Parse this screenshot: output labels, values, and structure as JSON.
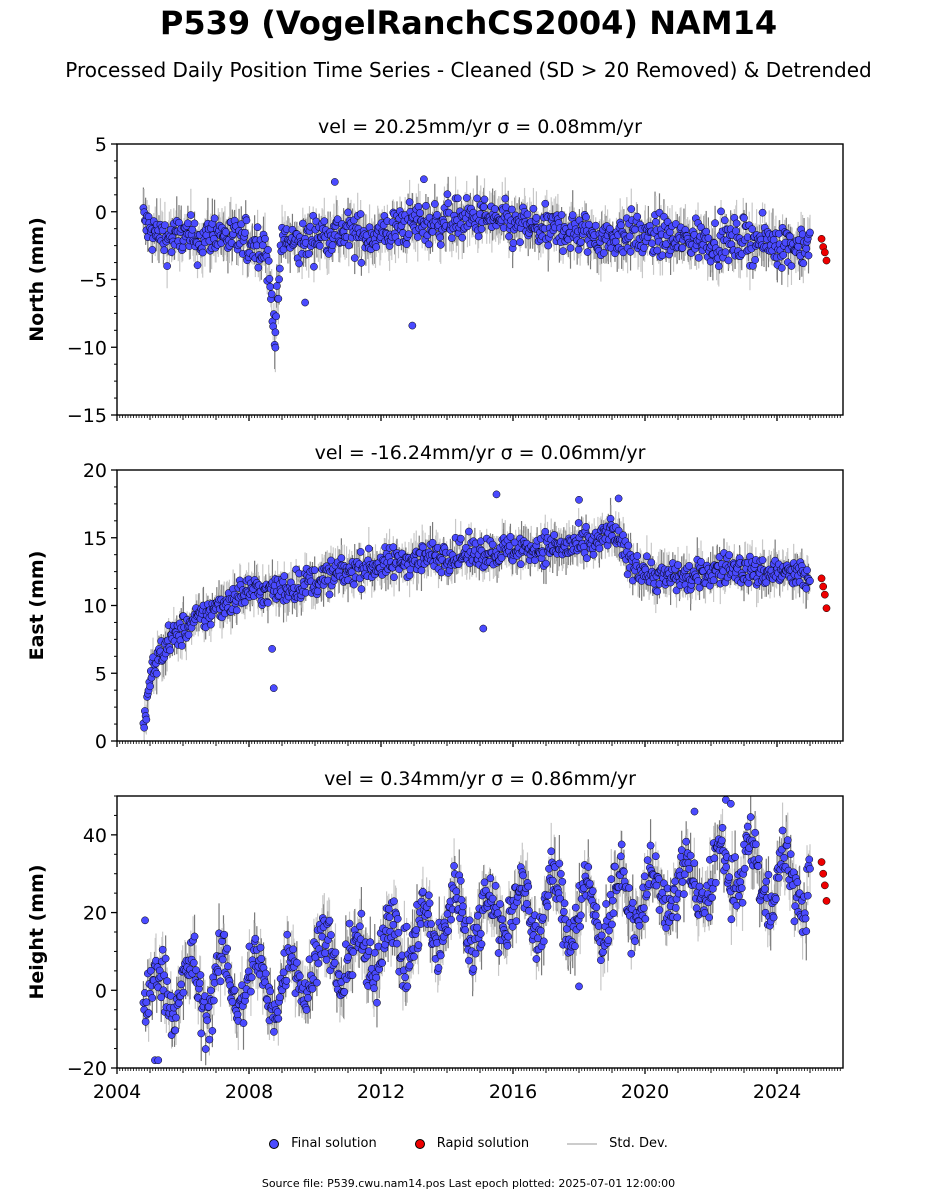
{
  "figure": {
    "title": "P539 (VogelRanchCS2004) NAM14",
    "subtitle": "Processed Daily Position Time Series - Cleaned (SD > 20 Removed) & Detrended",
    "source_note": "Source file: P539.cwu.nam14.pos  Last epoch plotted: 2025-07-01 12:00:00"
  },
  "legend": {
    "final": "Final solution",
    "rapid": "Rapid solution",
    "std": "Std. Dev."
  },
  "colors": {
    "final": "#4a4aff",
    "rapid": "#ee0000",
    "std": "#c8c8c8",
    "outline": "#000000"
  },
  "chart_data": [
    {
      "type": "scatter",
      "title": "vel = 20.25mm/yr   σ = 0.08mm/yr",
      "ylabel": "North (mm)",
      "ylim": [
        -15,
        5
      ],
      "yticks": [
        -15,
        -10,
        -5,
        0,
        5
      ],
      "xlim": [
        2004,
        2026
      ],
      "xticks": [
        2004,
        2008,
        2012,
        2016,
        2020,
        2024
      ],
      "series": [
        {
          "name": "Final solution",
          "x": [
            2004.8,
            2005.0,
            2005.5,
            2006.0,
            2006.5,
            2007.0,
            2007.5,
            2008.0,
            2008.5,
            2008.8,
            2009.0,
            2009.5,
            2010.0,
            2010.5,
            2011.0,
            2011.5,
            2012.0,
            2012.5,
            2013.0,
            2013.5,
            2014.0,
            2014.5,
            2015.0,
            2015.5,
            2016.0,
            2016.5,
            2017.0,
            2017.5,
            2018.0,
            2018.5,
            2019.0,
            2019.5,
            2020.0,
            2020.5,
            2021.0,
            2021.5,
            2022.0,
            2022.5,
            2023.0,
            2023.5,
            2024.0,
            2024.5,
            2025.0
          ],
          "y": [
            -0.5,
            -1.5,
            -2.0,
            -1.8,
            -2.2,
            -1.5,
            -2.0,
            -2.3,
            -2.5,
            -8.9,
            -2.0,
            -2.5,
            -1.8,
            -1.5,
            -1.6,
            -1.8,
            -1.7,
            -1.2,
            -0.8,
            -1.0,
            -0.5,
            -0.7,
            -0.4,
            -0.6,
            -1.2,
            -1.0,
            -1.5,
            -1.3,
            -1.6,
            -1.8,
            -2.0,
            -1.5,
            -2.0,
            -1.8,
            -2.2,
            -2.0,
            -2.1,
            -2.3,
            -2.0,
            -2.2,
            -2.3,
            -2.5,
            -2.4
          ]
        },
        {
          "name": "Rapid solution",
          "x": [
            2025.35,
            2025.4,
            2025.45,
            2025.5
          ],
          "y": [
            -2.0,
            -2.6,
            -3.0,
            -3.6
          ]
        }
      ],
      "outliers": {
        "x": [
          2008.8,
          2012.95,
          2010.6,
          2013.3,
          2009.7
        ],
        "y": [
          -8.9,
          -8.4,
          2.2,
          2.4,
          -6.7
        ]
      }
    },
    {
      "type": "scatter",
      "title": "vel = -16.24mm/yr   σ = 0.06mm/yr",
      "ylabel": "East (mm)",
      "ylim": [
        0,
        20
      ],
      "yticks": [
        0,
        5,
        10,
        15,
        20
      ],
      "xlim": [
        2004,
        2026
      ],
      "xticks": [
        2004,
        2008,
        2012,
        2016,
        2020,
        2024
      ],
      "series": [
        {
          "name": "Final solution",
          "x": [
            2004.8,
            2004.9,
            2005.0,
            2005.2,
            2005.5,
            2006.0,
            2006.5,
            2007.0,
            2007.5,
            2008.0,
            2008.5,
            2009.0,
            2009.5,
            2010.0,
            2010.5,
            2011.0,
            2011.5,
            2012.0,
            2012.5,
            2013.0,
            2013.5,
            2014.0,
            2014.5,
            2015.0,
            2015.5,
            2016.0,
            2016.5,
            2017.0,
            2017.5,
            2018.0,
            2018.5,
            2019.0,
            2019.5,
            2020.0,
            2020.5,
            2021.0,
            2021.5,
            2022.0,
            2022.5,
            2023.0,
            2023.5,
            2024.0,
            2024.5,
            2025.0
          ],
          "y": [
            0.6,
            2.5,
            4.5,
            6.0,
            7.2,
            8.2,
            9.0,
            9.8,
            10.5,
            11.2,
            11.0,
            11.2,
            11.5,
            11.8,
            12.2,
            12.5,
            12.8,
            13.0,
            13.2,
            13.4,
            13.6,
            13.7,
            13.8,
            13.9,
            14.0,
            14.1,
            14.2,
            14.3,
            14.3,
            14.4,
            14.5,
            15.5,
            13.5,
            12.5,
            12.0,
            12.2,
            12.0,
            12.5,
            12.8,
            12.6,
            12.4,
            12.5,
            12.3,
            12.0
          ]
        },
        {
          "name": "Rapid solution",
          "x": [
            2025.35,
            2025.4,
            2025.45,
            2025.5
          ],
          "y": [
            12.0,
            11.4,
            10.8,
            9.8
          ]
        }
      ],
      "outliers": {
        "x": [
          2008.75,
          2008.7,
          2015.1,
          2015.5,
          2018.0,
          2019.2
        ],
        "y": [
          3.9,
          6.8,
          8.3,
          18.2,
          17.8,
          17.9
        ]
      }
    },
    {
      "type": "scatter",
      "title": "vel = 0.34mm/yr   σ = 0.86mm/yr",
      "ylabel": "Height (mm)",
      "ylim": [
        -20,
        50
      ],
      "yticks": [
        -20,
        0,
        20,
        40
      ],
      "xlim": [
        2004,
        2026
      ],
      "xticks": [
        2004,
        2008,
        2012,
        2016,
        2020,
        2024
      ],
      "xticklabels": [
        "2004",
        "2008",
        "2012",
        "2016",
        "2020",
        "2024"
      ],
      "series": [
        {
          "name": "Final solution",
          "x": [
            2004.8,
            2005.0,
            2005.5,
            2006.0,
            2006.5,
            2007.0,
            2007.5,
            2008.0,
            2008.5,
            2009.0,
            2009.5,
            2010.0,
            2010.5,
            2011.0,
            2011.5,
            2012.0,
            2012.5,
            2013.0,
            2013.5,
            2014.0,
            2014.5,
            2015.0,
            2015.5,
            2016.0,
            2016.5,
            2017.0,
            2017.5,
            2018.0,
            2018.5,
            2019.0,
            2019.5,
            2020.0,
            2020.5,
            2021.0,
            2021.5,
            2022.0,
            2022.5,
            2023.0,
            2023.5,
            2024.0,
            2024.5,
            2025.0
          ],
          "y": [
            2,
            -2,
            0,
            2,
            -1,
            3,
            0,
            4,
            0,
            2,
            4,
            8,
            10,
            6,
            9,
            11,
            14,
            12,
            16,
            18,
            20,
            17,
            21,
            22,
            19,
            23,
            21,
            22,
            18,
            24,
            22,
            25,
            24,
            27,
            26,
            29,
            30,
            33,
            28,
            29,
            27,
            28
          ]
        },
        {
          "name": "Rapid solution",
          "x": [
            2025.35,
            2025.4,
            2025.45,
            2025.5
          ],
          "y": [
            33,
            30,
            27,
            23
          ]
        }
      ],
      "outliers": {
        "x": [
          2004.85,
          2005.15,
          2005.25,
          2018.0,
          2021.5,
          2022.45,
          2022.6
        ],
        "y": [
          18,
          -18,
          -18,
          1,
          46,
          49,
          48
        ]
      }
    }
  ]
}
